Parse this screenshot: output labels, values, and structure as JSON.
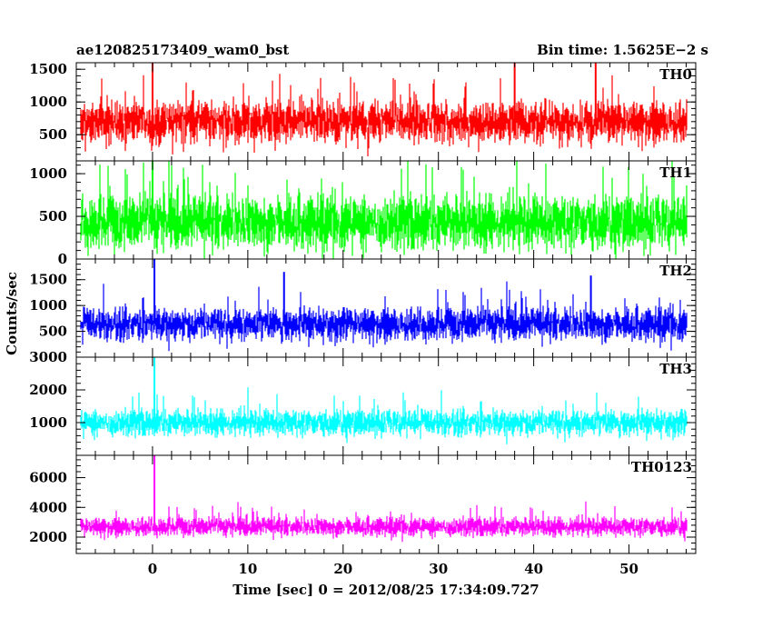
{
  "chart_data": {
    "type": "line",
    "title": "ae120825173409_wam0_bst",
    "subtitle": "Bin time: 1.5625E−2 s",
    "xlabel": "Time [sec] 0 = 2012/08/25 17:34:09.727",
    "ylabel": "Counts/sec",
    "xlim": [
      -8,
      57
    ],
    "x_ticks": [
      0,
      10,
      20,
      30,
      40,
      50
    ],
    "x_ticklabels": [
      "0",
      "10",
      "20",
      "30",
      "40",
      "50"
    ],
    "data_x_range": [
      -7.5,
      56
    ],
    "panels": [
      {
        "name": "TH0",
        "color": "#ff0000",
        "ylim": [
          100,
          1600
        ],
        "ticks": [
          500,
          1000,
          1500
        ],
        "ticklabels": [
          "500",
          "1000",
          "1500"
        ],
        "baseline": 700,
        "noise": 260,
        "spikes": [
          {
            "x": 0,
            "y": 1600
          },
          {
            "x": 38,
            "y": 1600
          },
          {
            "x": 46.5,
            "y": 1600
          }
        ]
      },
      {
        "name": "TH1",
        "color": "#00ff00",
        "ylim": [
          0,
          1150
        ],
        "ticks": [
          0,
          500,
          1000
        ],
        "ticklabels": [
          "0",
          "500",
          "1000"
        ],
        "baseline": 430,
        "noise": 260,
        "spikes": [
          {
            "x": 0,
            "y": 1150
          }
        ]
      },
      {
        "name": "TH2",
        "color": "#0000ff",
        "ylim": [
          0,
          1900
        ],
        "ticks": [
          500,
          1000,
          1500
        ],
        "ticklabels": [
          "500",
          "1000",
          "1500"
        ],
        "baseline": 640,
        "noise": 260,
        "spikes": [
          {
            "x": 0.2,
            "y": 1900
          },
          {
            "x": 13.8,
            "y": 1650
          },
          {
            "x": 46,
            "y": 1580
          }
        ]
      },
      {
        "name": "TH3",
        "color": "#00ffff",
        "ylim": [
          0,
          3000
        ],
        "ticks": [
          1000,
          2000,
          3000
        ],
        "ticklabels": [
          "1000",
          "2000",
          "3000"
        ],
        "baseline": 1000,
        "noise": 330,
        "spikes": [
          {
            "x": 0.2,
            "y": 3000
          }
        ]
      },
      {
        "name": "TH0123",
        "color": "#ff00ff",
        "ylim": [
          900,
          7500
        ],
        "ticks": [
          2000,
          4000,
          6000
        ],
        "ticklabels": [
          "2000",
          "4000",
          "6000"
        ],
        "baseline": 2700,
        "noise": 520,
        "spikes": [
          {
            "x": 0.2,
            "y": 7500
          }
        ]
      }
    ]
  }
}
